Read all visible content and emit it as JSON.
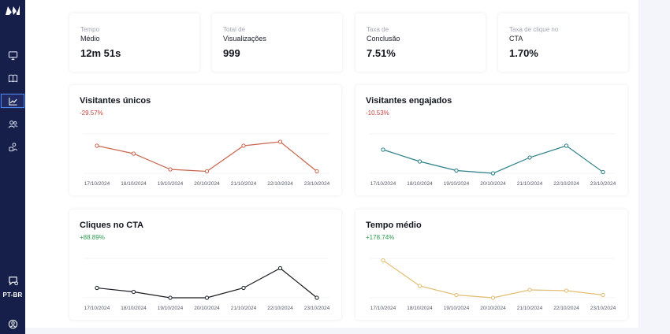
{
  "app": {
    "language": "PT-BR",
    "sidebar": [
      "logo-icon",
      "monitor-icon",
      "book-icon",
      "analytics-icon",
      "users-icon",
      "settings-users-icon",
      "chat-icon",
      "profile-icon"
    ]
  },
  "stats": [
    {
      "label_line1": "Tempo",
      "label_line2": "Médio",
      "value": "12m 51s"
    },
    {
      "label_line1": "Total de",
      "label_line2": "Visualizações",
      "value": "999"
    },
    {
      "label_line1": "Taxa de",
      "label_line2": "Conclusão",
      "value": "7.51%"
    },
    {
      "label_line1": "Taxa de clique no",
      "label_line2": "CTA",
      "value": "1.70%"
    }
  ],
  "charts": [
    {
      "title": "Visitantes únicos",
      "change": "-29.57%",
      "trend": "neg"
    },
    {
      "title": "Visitantes engajados",
      "change": "-10.53%",
      "trend": "neg"
    },
    {
      "title": "Cliques no CTA",
      "change": "+88.89%",
      "trend": "pos"
    },
    {
      "title": "Tempo médio",
      "change": "+178.74%",
      "trend": "pos"
    }
  ],
  "chart_data": [
    {
      "type": "line",
      "title": "Visitantes únicos",
      "categories": [
        "17/10/2024",
        "18/10/2024",
        "19/10/2024",
        "20/10/2024",
        "21/10/2024",
        "22/10/2024",
        "23/10/2024"
      ],
      "series": [
        {
          "name": "Visitantes únicos",
          "values": [
            0.7,
            0.5,
            0.1,
            0.05,
            0.7,
            0.8,
            0.05
          ]
        }
      ],
      "ylim": [
        0,
        1
      ],
      "color": "#c9654d"
    },
    {
      "type": "line",
      "title": "Visitantes engajados",
      "categories": [
        "17/10/2024",
        "18/10/2024",
        "19/10/2024",
        "20/10/2024",
        "21/10/2024",
        "22/10/2024",
        "23/10/2024"
      ],
      "series": [
        {
          "name": "Visitantes engajados",
          "values": [
            0.6,
            0.3,
            0.07,
            0.0,
            0.4,
            0.7,
            0.03
          ]
        }
      ],
      "ylim": [
        0,
        1
      ],
      "color": "#2a7f87"
    },
    {
      "type": "line",
      "title": "Cliques no CTA",
      "categories": [
        "17/10/2024",
        "18/10/2024",
        "19/10/2024",
        "20/10/2024",
        "21/10/2024",
        "22/10/2024",
        "23/10/2024"
      ],
      "series": [
        {
          "name": "Cliques no CTA",
          "values": [
            0.25,
            0.15,
            0.0,
            0.0,
            0.25,
            0.75,
            0.0
          ]
        }
      ],
      "ylim": [
        0,
        1
      ],
      "color": "#1a1c22"
    },
    {
      "type": "line",
      "title": "Tempo médio",
      "categories": [
        "17/10/2024",
        "18/10/2024",
        "19/10/2024",
        "20/10/2024",
        "21/10/2024",
        "22/10/2024",
        "23/10/2024"
      ],
      "series": [
        {
          "name": "Tempo médio",
          "values": [
            0.95,
            0.3,
            0.07,
            0.0,
            0.2,
            0.18,
            0.07
          ]
        }
      ],
      "ylim": [
        0,
        1
      ],
      "color": "#e2bd72"
    }
  ]
}
